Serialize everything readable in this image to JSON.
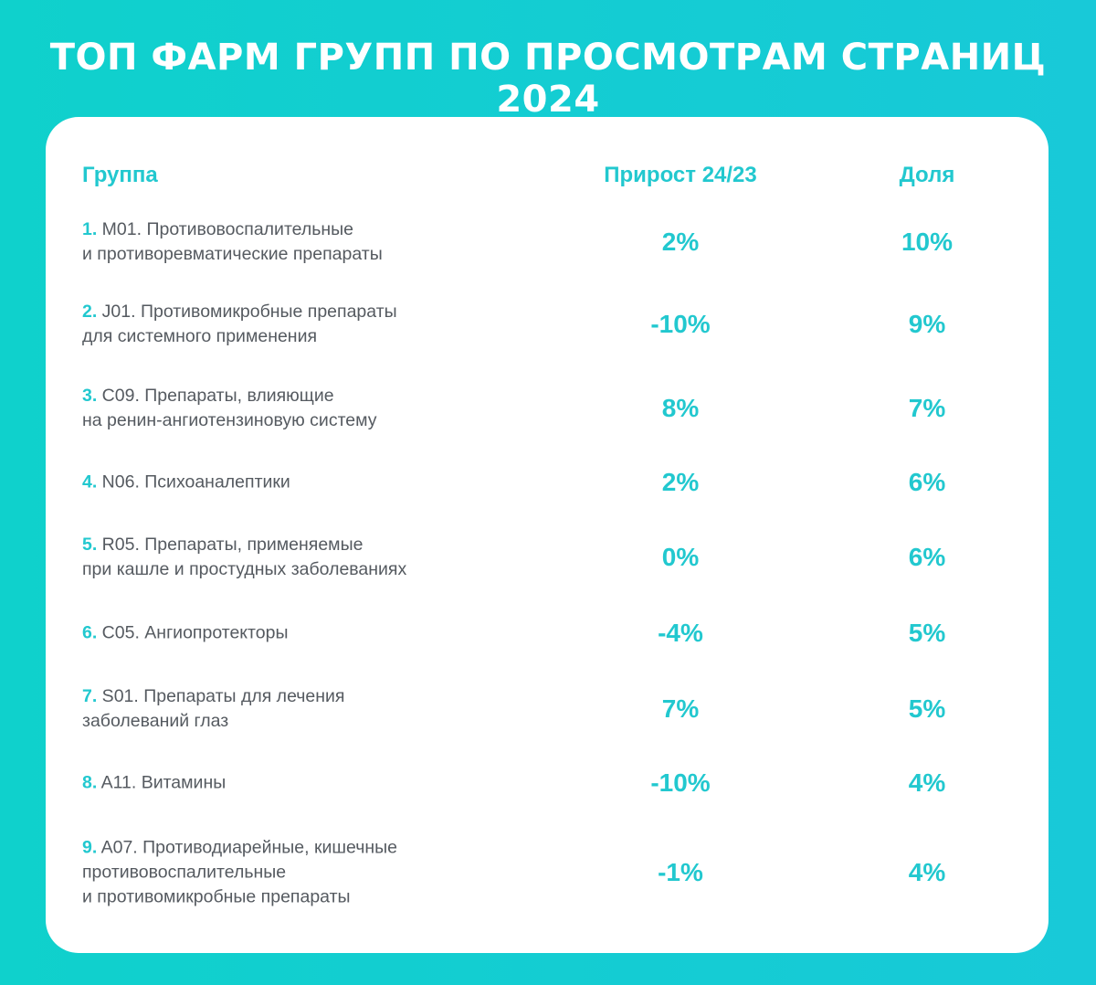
{
  "title": "ТОП ФАРМ ГРУПП ПО ПРОСМОТРАМ СТРАНИЦ 2024",
  "colors": {
    "accent": "#22c8cf",
    "background": "#0fd1cc",
    "card": "#ffffff",
    "text": "#555a60"
  },
  "chart_data": {
    "type": "table",
    "title": "ТОП ФАРМ ГРУПП ПО ПРОСМОТРАМ СТРАНИЦ 2024",
    "columns": [
      "Группа",
      "Прирост 24/23",
      "Доля"
    ],
    "rows": [
      {
        "num": "1.",
        "lines": [
          "M01. Противовоспалительные",
          "и противоревматические препараты"
        ],
        "growth": "2%",
        "share": "10%"
      },
      {
        "num": "2.",
        "lines": [
          " J01. Противомикробные препараты",
          "для системного применения"
        ],
        "growth": "-10%",
        "share": "9%"
      },
      {
        "num": "3.",
        "lines": [
          "C09. Препараты, влияющие",
          "на ренин-ангиотензиновую систему"
        ],
        "growth": "8%",
        "share": "7%"
      },
      {
        "num": "4.",
        "lines": [
          "N06. Психоаналептики"
        ],
        "growth": "2%",
        "share": "6%"
      },
      {
        "num": "5.",
        "lines": [
          "R05. Препараты, применяемые",
          "при кашле и простудных заболеваниях"
        ],
        "growth": "0%",
        "share": "6%"
      },
      {
        "num": "6.",
        "lines": [
          "C05. Ангиопротекторы"
        ],
        "growth": "-4%",
        "share": "5%"
      },
      {
        "num": "7.",
        "lines": [
          "S01. Препараты для лечения",
          "заболеваний глаз"
        ],
        "growth": "7%",
        "share": "5%"
      },
      {
        "num": "8.",
        "lines": [
          "A11. Витамины"
        ],
        "growth": "-10%",
        "share": "4%"
      },
      {
        "num": "9.",
        "lines": [
          "A07. Противодиарейные, кишечные",
          "противовоспалительные",
          "и противомикробные препараты"
        ],
        "growth": "-1%",
        "share": "4%"
      }
    ]
  }
}
